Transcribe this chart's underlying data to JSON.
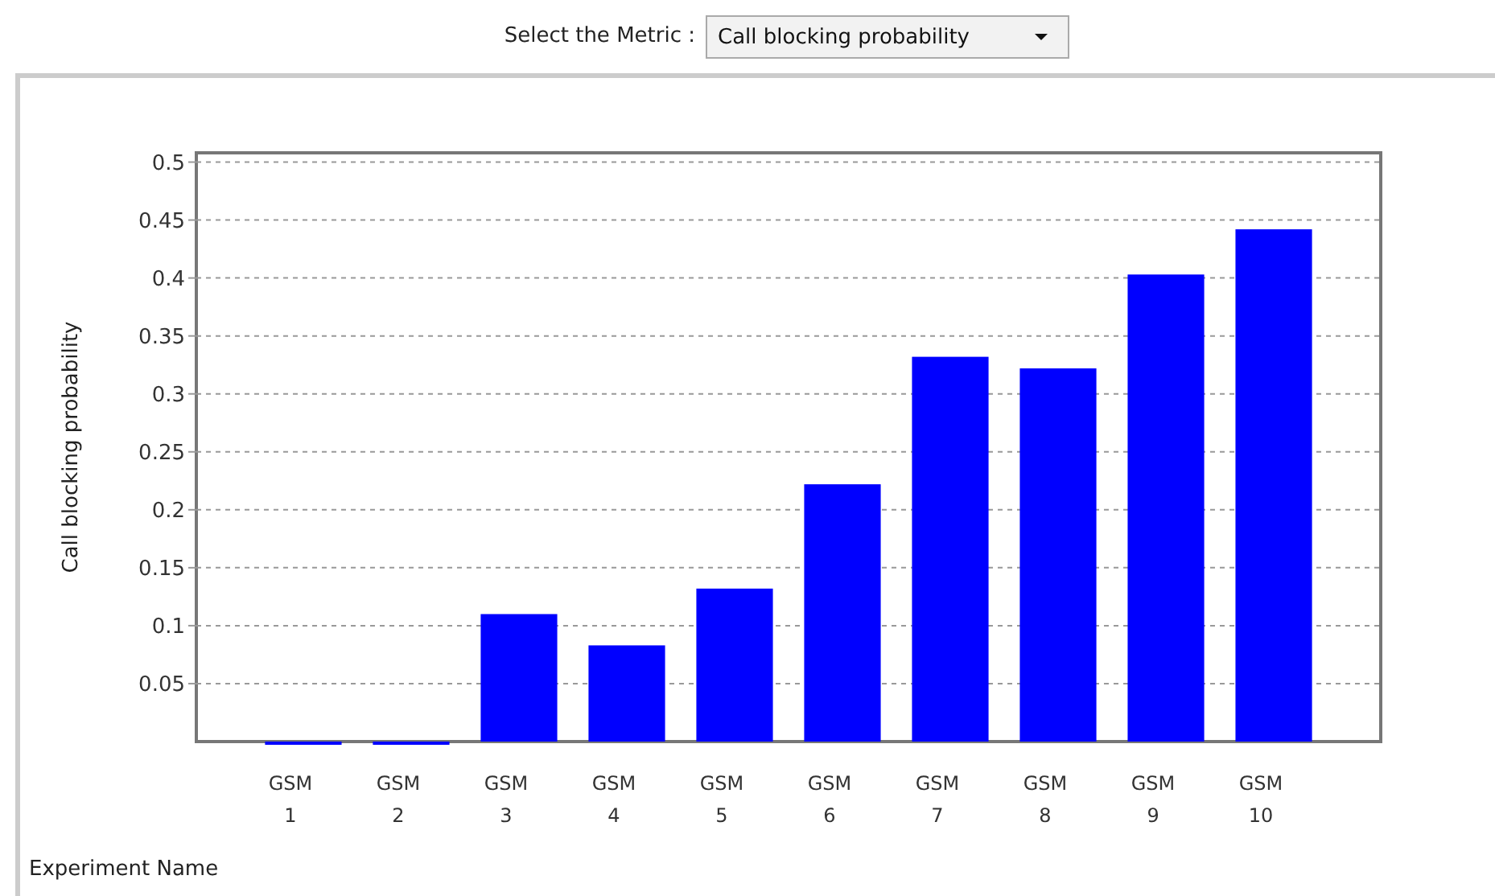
{
  "chart_data": {
    "type": "bar",
    "xlabel": "Experiment Name",
    "ylabel": "Call blocking probability",
    "annotations": [
      "Select the Metric :",
      "Call blocking probability"
    ],
    "categories": [
      "GSM 1",
      "GSM 2",
      "GSM 3",
      "GSM 4",
      "GSM 5",
      "GSM 6",
      "GSM 7",
      "GSM 8",
      "GSM 9",
      "GSM 10"
    ],
    "values": [
      0,
      0,
      0.11,
      0.083,
      0.132,
      0.222,
      0.332,
      0.322,
      0.403,
      0.442
    ],
    "color": "#0000ff",
    "ylim": [
      0,
      0.508
    ],
    "yticks": [
      0.05,
      0.1,
      0.15,
      0.2,
      0.25,
      0.3,
      0.35,
      0.4,
      0.45,
      0.5
    ],
    "grid": "y"
  }
}
